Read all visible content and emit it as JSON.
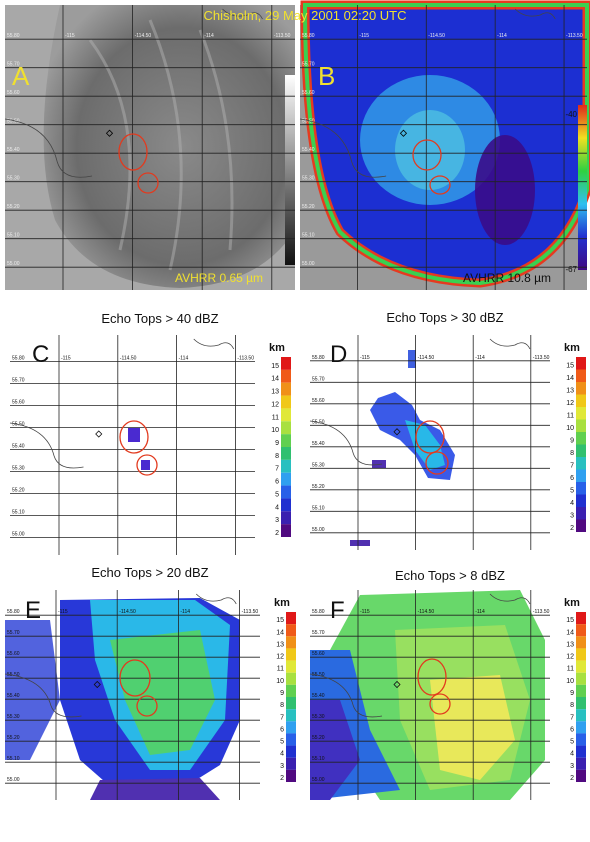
{
  "header": {
    "title": "Chisholm, 29 May 2001 02:20 UTC"
  },
  "panels": [
    {
      "letter": "A",
      "caption": "AVHRR 0.65 µm"
    },
    {
      "letter": "B",
      "caption": "AVHRR 10.8 µm",
      "scale": [
        "-40",
        "-67"
      ]
    },
    {
      "letter": "C",
      "title": "Echo Tops > 40 dBZ",
      "unit": "km",
      "scale": [
        "15",
        "14",
        "13",
        "12",
        "11",
        "10",
        "9",
        "8",
        "7",
        "6",
        "5",
        "4",
        "3",
        "2"
      ]
    },
    {
      "letter": "D",
      "title": "Echo Tops > 30 dBZ",
      "unit": "km",
      "scale": [
        "15",
        "14",
        "13",
        "12",
        "11",
        "10",
        "9",
        "8",
        "7",
        "6",
        "5",
        "4",
        "3",
        "2"
      ]
    },
    {
      "letter": "E",
      "title": "Echo Tops > 20 dBZ",
      "unit": "km",
      "scale": [
        "15",
        "14",
        "13",
        "12",
        "11",
        "10",
        "9",
        "8",
        "7",
        "6",
        "5",
        "4",
        "3",
        "2"
      ]
    },
    {
      "letter": "F",
      "title": "Echo Tops > 8 dBZ",
      "unit": "km",
      "scale": [
        "15",
        "14",
        "13",
        "12",
        "11",
        "10",
        "9",
        "8",
        "7",
        "6",
        "5",
        "4",
        "3",
        "2"
      ]
    }
  ],
  "lat_labels": [
    "55.80",
    "55.70",
    "55.60",
    "55.50",
    "55.40",
    "55.30",
    "55.20",
    "55.10",
    "55.00"
  ],
  "lon_labels": [
    "-115",
    "-114.50",
    "-114",
    "-113.50"
  ]
}
